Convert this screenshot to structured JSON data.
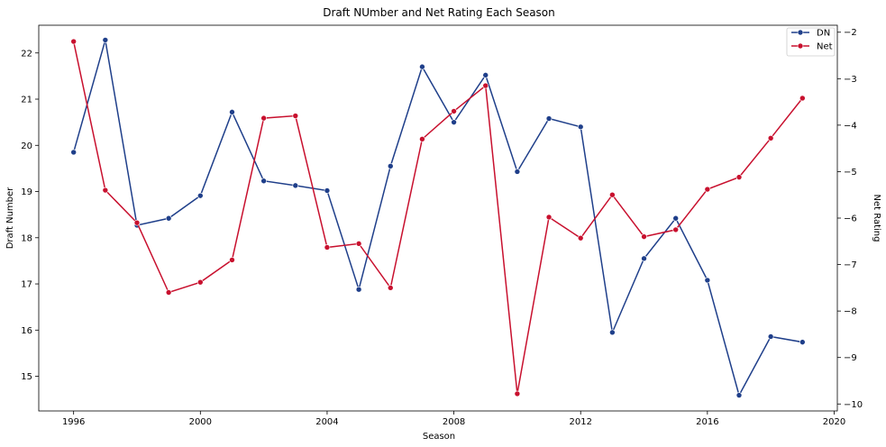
{
  "chart_data": {
    "type": "line",
    "title": "Draft NUmber and Net Rating Each Season",
    "xlabel": "Season",
    "ylabel_left": "Draft Number",
    "ylabel_right": "Net Rating",
    "xlim": [
      1994.9,
      2020.1
    ],
    "ylim_left": [
      14.25,
      22.6
    ],
    "ylim_right": [
      -10.15,
      -1.85
    ],
    "x_ticks": [
      1996,
      2000,
      2004,
      2008,
      2012,
      2016,
      2020
    ],
    "y_ticks_left": [
      15,
      16,
      17,
      18,
      19,
      20,
      21,
      22
    ],
    "y_ticks_right": [
      -10,
      -9,
      -8,
      -7,
      -6,
      -5,
      -4,
      -3,
      -2
    ],
    "y_ticks_right_labels": [
      "−10",
      "−9",
      "−8",
      "−7",
      "−6",
      "−5",
      "−4",
      "−3",
      "−2"
    ],
    "grid": false,
    "legend_position": "top-right",
    "x": [
      1996,
      1997,
      1998,
      1999,
      2000,
      2001,
      2002,
      2003,
      2004,
      2005,
      2006,
      2007,
      2008,
      2009,
      2010,
      2011,
      2012,
      2013,
      2014,
      2015,
      2016,
      2017,
      2018,
      2019
    ],
    "series": [
      {
        "name": "DN",
        "axis": "left",
        "color": "#1f3f8a",
        "values": [
          19.85,
          22.28,
          18.27,
          18.42,
          18.91,
          20.72,
          19.23,
          19.13,
          19.02,
          16.88,
          19.55,
          21.7,
          20.5,
          21.52,
          19.43,
          20.58,
          20.4,
          15.95,
          17.55,
          18.42,
          17.08,
          14.59,
          15.86,
          15.74
        ]
      },
      {
        "name": "Net",
        "axis": "right",
        "color": "#c8102e",
        "values": [
          -2.2,
          -5.4,
          -6.1,
          -7.6,
          -7.38,
          -6.9,
          -3.85,
          -3.8,
          -6.63,
          -6.55,
          -7.5,
          -4.3,
          -3.7,
          -3.15,
          -9.78,
          -5.98,
          -6.43,
          -5.5,
          -6.4,
          -6.25,
          -5.38,
          -5.12,
          -4.28,
          -3.42
        ]
      }
    ]
  }
}
